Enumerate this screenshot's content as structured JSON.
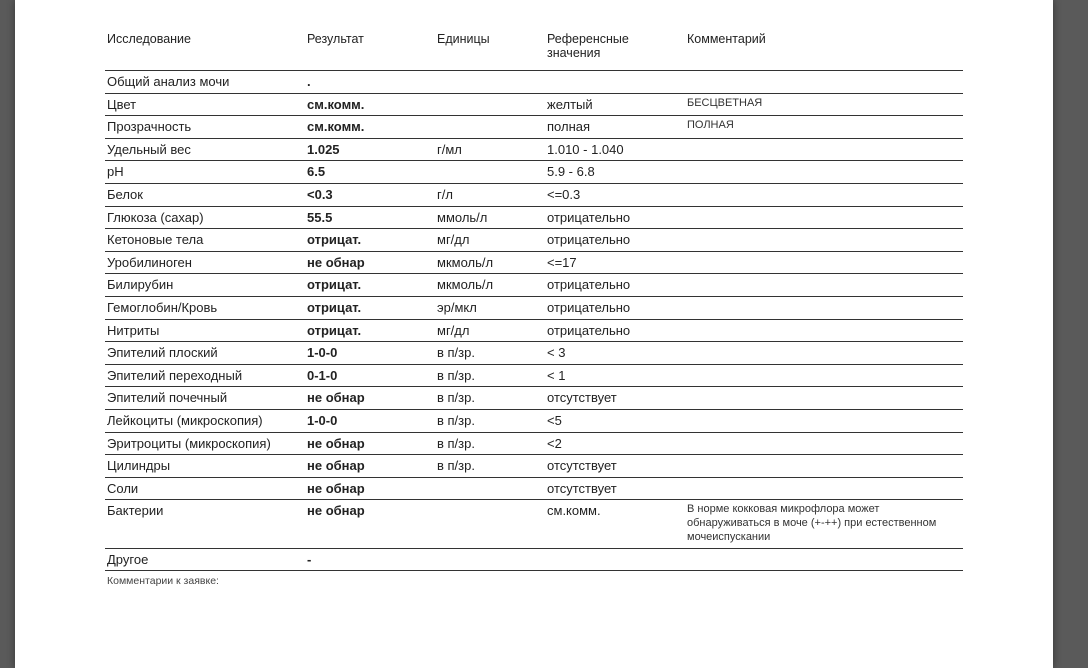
{
  "headers": {
    "test": "Исследование",
    "result": "Результат",
    "units": "Единицы",
    "reference": "Референсные значения",
    "comment": "Комментарий"
  },
  "section": {
    "title": "Общий анализ мочи",
    "dot": "."
  },
  "rows": [
    {
      "test": "Цвет",
      "result": "см.комм.",
      "units": "",
      "ref": "желтый",
      "comment": "БЕСЦВЕТНАЯ"
    },
    {
      "test": "Прозрачность",
      "result": "см.комм.",
      "units": "",
      "ref": "полная",
      "comment": "ПОЛНАЯ"
    },
    {
      "test": "Удельный вес",
      "result": "1.025",
      "units": "г/мл",
      "ref": "1.010 - 1.040",
      "comment": ""
    },
    {
      "test": "pH",
      "result": "6.5",
      "units": "",
      "ref": "5.9 - 6.8",
      "comment": ""
    },
    {
      "test": "Белок",
      "result": "<0.3",
      "units": "г/л",
      "ref": "<=0.3",
      "comment": ""
    },
    {
      "test": "Глюкоза (сахар)",
      "result": "55.5",
      "units": "ммоль/л",
      "ref": "отрицательно",
      "comment": ""
    },
    {
      "test": "Кетоновые тела",
      "result": "отрицат.",
      "units": "мг/дл",
      "ref": "отрицательно",
      "comment": ""
    },
    {
      "test": "Уробилиноген",
      "result": "не обнар",
      "units": "мкмоль/л",
      "ref": "<=17",
      "comment": ""
    },
    {
      "test": "Билирубин",
      "result": "отрицат.",
      "units": "мкмоль/л",
      "ref": "отрицательно",
      "comment": ""
    },
    {
      "test": "Гемоглобин/Кровь",
      "result": "отрицат.",
      "units": "эр/мкл",
      "ref": "отрицательно",
      "comment": ""
    },
    {
      "test": "Нитриты",
      "result": "отрицат.",
      "units": "мг/дл",
      "ref": "отрицательно",
      "comment": ""
    },
    {
      "test": "Эпителий плоский",
      "result": "1-0-0",
      "units": "в п/зр.",
      "ref": "< 3",
      "comment": ""
    },
    {
      "test": "Эпителий переходный",
      "result": "0-1-0",
      "units": "в п/зр.",
      "ref": "< 1",
      "comment": ""
    },
    {
      "test": "Эпителий почечный",
      "result": "не обнар",
      "units": "в п/зр.",
      "ref": "отсутствует",
      "comment": ""
    },
    {
      "test": "Лейкоциты (микроскопия)",
      "result": "1-0-0",
      "units": "в п/зр.",
      "ref": "<5",
      "comment": ""
    },
    {
      "test": "Эритроциты (микроскопия)",
      "result": "не обнар",
      "units": "в п/зр.",
      "ref": "<2",
      "comment": ""
    },
    {
      "test": "Цилиндры",
      "result": "не обнар",
      "units": "в п/зр.",
      "ref": "отсутствует",
      "comment": ""
    },
    {
      "test": "Соли",
      "result": "не обнар",
      "units": "",
      "ref": "отсутствует",
      "comment": ""
    },
    {
      "test": "Бактерии",
      "result": "не обнар",
      "units": "",
      "ref": "см.комм.",
      "comment": "В норме кокковая микрофлора может обнаруживаться в моче (+-++) при естественном мочеиспускании"
    },
    {
      "test": "Другое",
      "result": "-",
      "units": "",
      "ref": "",
      "comment": ""
    }
  ],
  "footer_note": "Комментарии к заявке:"
}
